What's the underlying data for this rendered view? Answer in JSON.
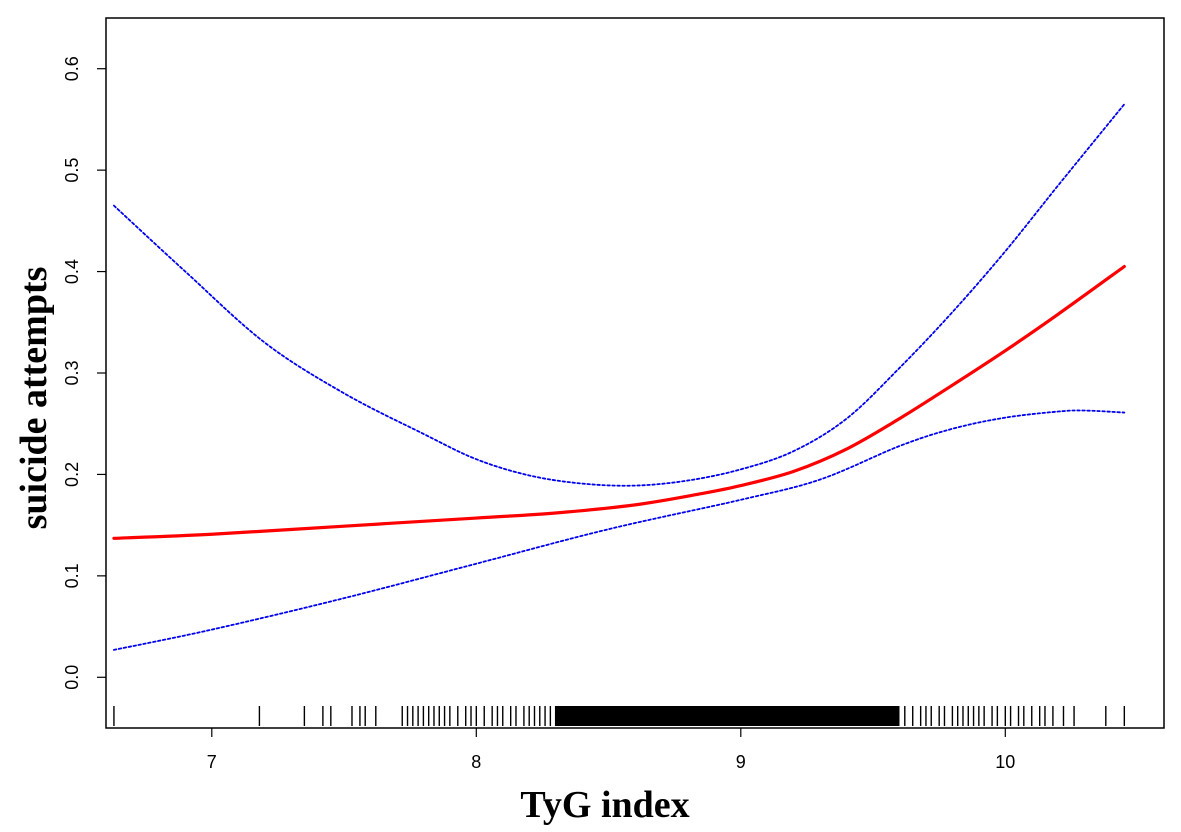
{
  "chart_data": {
    "type": "line",
    "xlabel": "TyG index",
    "ylabel": "suicide attempts",
    "xlim": [
      6.6,
      10.6
    ],
    "ylim": [
      -0.05,
      0.65
    ],
    "x_ticks": [
      7,
      8,
      9,
      10
    ],
    "y_ticks": [
      0.0,
      0.1,
      0.2,
      0.3,
      0.4,
      0.5,
      0.6
    ],
    "grid": false,
    "legend": "none",
    "colors": {
      "fit": "#ff0000",
      "ci": "#0000ee",
      "rug": "#000000"
    },
    "series": [
      {
        "role": "fit",
        "x": [
          6.63,
          7.0,
          7.5,
          8.0,
          8.3,
          8.6,
          8.85,
          9.0,
          9.2,
          9.4,
          9.6,
          9.8,
          10.0,
          10.2,
          10.45
        ],
        "y": [
          0.137,
          0.141,
          0.149,
          0.157,
          0.162,
          0.17,
          0.181,
          0.189,
          0.203,
          0.225,
          0.255,
          0.288,
          0.322,
          0.358,
          0.405
        ]
      },
      {
        "role": "ci-upper",
        "x": [
          6.63,
          6.9,
          7.2,
          7.5,
          7.8,
          8.0,
          8.2,
          8.4,
          8.6,
          8.8,
          9.0,
          9.2,
          9.4,
          9.6,
          9.8,
          10.0,
          10.2,
          10.45
        ],
        "y": [
          0.465,
          0.4,
          0.33,
          0.28,
          0.24,
          0.215,
          0.199,
          0.191,
          0.189,
          0.194,
          0.205,
          0.223,
          0.255,
          0.305,
          0.36,
          0.42,
          0.485,
          0.565
        ]
      },
      {
        "role": "ci-lower",
        "x": [
          6.63,
          7.0,
          7.5,
          8.0,
          8.5,
          9.0,
          9.3,
          9.6,
          9.8,
          10.0,
          10.2,
          10.3,
          10.45
        ],
        "y": [
          0.027,
          0.047,
          0.078,
          0.112,
          0.146,
          0.175,
          0.195,
          0.228,
          0.245,
          0.256,
          0.262,
          0.263,
          0.261
        ]
      }
    ],
    "rug": {
      "sparse_x": [
        6.63,
        7.18,
        7.35,
        7.42,
        7.45,
        7.53,
        7.56,
        7.58,
        7.62,
        7.72,
        7.74,
        7.76,
        7.78,
        7.8,
        7.82,
        7.84,
        7.86,
        7.88,
        7.9,
        7.93,
        7.96,
        7.98,
        8.0,
        8.03,
        8.06,
        8.08,
        8.1,
        8.13,
        8.15,
        8.18,
        8.2,
        8.22,
        8.24,
        8.26,
        8.28,
        8.3
      ],
      "dense_range": [
        8.3,
        9.6
      ],
      "tail_x": [
        9.62,
        9.65,
        9.68,
        9.7,
        9.72,
        9.75,
        9.77,
        9.8,
        9.82,
        9.84,
        9.86,
        9.88,
        9.9,
        9.92,
        9.95,
        9.97,
        10.0,
        10.02,
        10.05,
        10.07,
        10.1,
        10.13,
        10.15,
        10.18,
        10.22,
        10.26,
        10.38,
        10.45
      ]
    }
  }
}
